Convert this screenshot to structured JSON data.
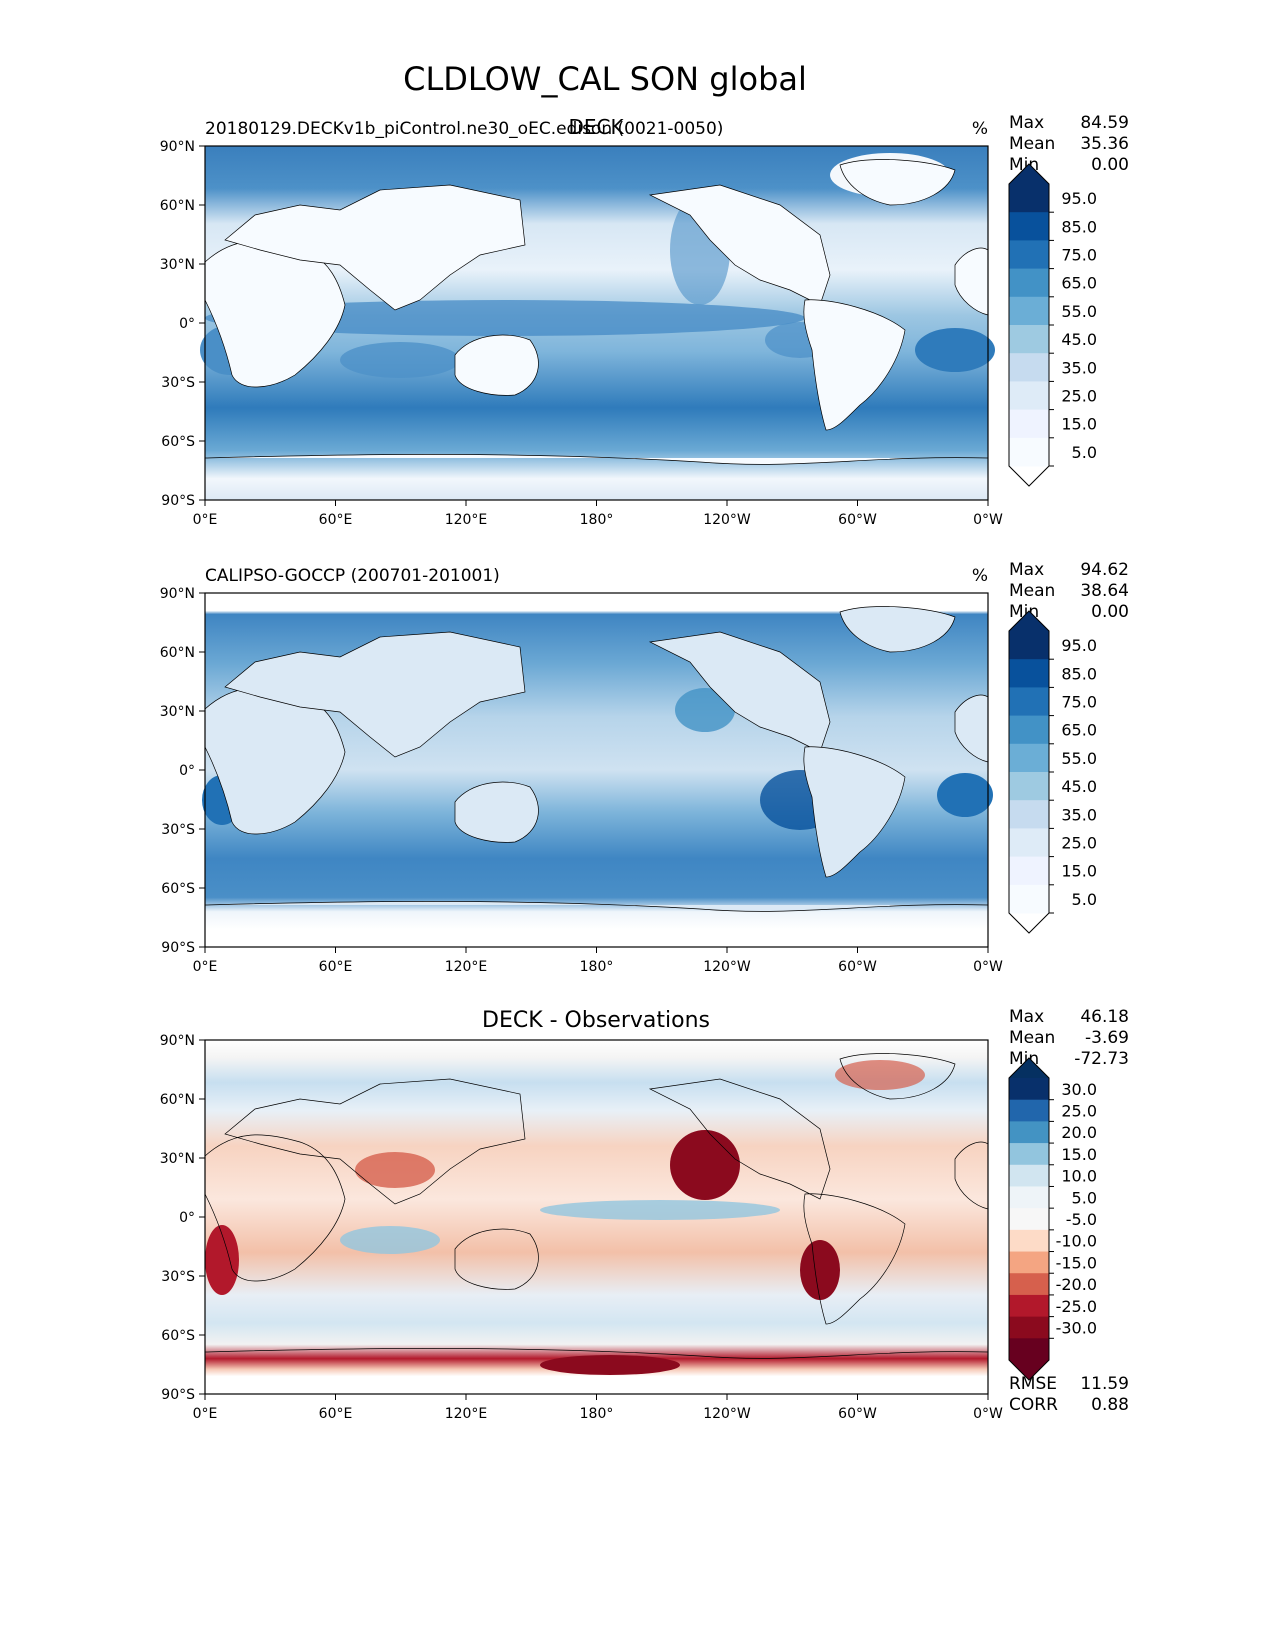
{
  "figure": {
    "title": "CLDLOW_CAL SON global",
    "stat_labels": [
      "Max",
      "Mean",
      "Min"
    ],
    "extra_stat_labels": [
      "RMSE",
      "CORR"
    ]
  },
  "chart_data": [
    {
      "type": "heatmap",
      "panel": "model",
      "left_title": "20180129.DECKv1b_piControl.ne30_oEC.edison (0021-0050)",
      "center_title": "DECK",
      "units": "%",
      "stats": {
        "Max": "84.59",
        "Mean": "35.36",
        "Min": "0.00"
      },
      "colorbar_labels": [
        "95.0",
        "85.0",
        "75.0",
        "65.0",
        "55.0",
        "45.0",
        "35.0",
        "25.0",
        "15.0",
        "5.0"
      ],
      "colorbar_colors": [
        "#08306b",
        "#08519c",
        "#2171b5",
        "#4292c6",
        "#6baed6",
        "#9ecae1",
        "#c6dbef",
        "#deebf7",
        "#eff3ff",
        "#f7fbff"
      ],
      "colorbar_extend_colors": {
        "high": "#08306b",
        "low": "#ffffff"
      },
      "x_ticks": [
        "0°E",
        "60°E",
        "120°E",
        "180°",
        "120°W",
        "60°W",
        "0°W"
      ],
      "y_ticks": [
        "90°N",
        "60°N",
        "30°N",
        "0°",
        "30°S",
        "60°S",
        "90°S"
      ],
      "xlim": [
        0,
        360
      ],
      "ylim": [
        -90,
        90
      ]
    },
    {
      "type": "heatmap",
      "panel": "obs",
      "left_title": "CALIPSO-GOCCP (200701-201001)",
      "center_title": "",
      "units": "%",
      "stats": {
        "Max": "94.62",
        "Mean": "38.64",
        "Min": "0.00"
      },
      "colorbar_labels": [
        "95.0",
        "85.0",
        "75.0",
        "65.0",
        "55.0",
        "45.0",
        "35.0",
        "25.0",
        "15.0",
        "5.0"
      ],
      "colorbar_colors": [
        "#08306b",
        "#08519c",
        "#2171b5",
        "#4292c6",
        "#6baed6",
        "#9ecae1",
        "#c6dbef",
        "#deebf7",
        "#eff3ff",
        "#f7fbff"
      ],
      "colorbar_extend_colors": {
        "high": "#08306b",
        "low": "#ffffff"
      },
      "x_ticks": [
        "0°E",
        "60°E",
        "120°E",
        "180°",
        "120°W",
        "60°W",
        "0°W"
      ],
      "y_ticks": [
        "90°N",
        "60°N",
        "30°N",
        "0°",
        "30°S",
        "60°S",
        "90°S"
      ],
      "xlim": [
        0,
        360
      ],
      "ylim": [
        -90,
        90
      ]
    },
    {
      "type": "heatmap",
      "panel": "diff",
      "left_title": "",
      "center_title": "DECK - Observations",
      "units": "",
      "stats": {
        "Max": "46.18",
        "Mean": "-3.69",
        "Min": "-72.73"
      },
      "extra_stats": {
        "RMSE": "11.59",
        "CORR": "0.88"
      },
      "colorbar_labels": [
        "30.0",
        "25.0",
        "20.0",
        "15.0",
        "10.0",
        "5.0",
        "-5.0",
        "-10.0",
        "-15.0",
        "-20.0",
        "-25.0",
        "-30.0"
      ],
      "colorbar_colors": [
        "#08306b",
        "#2166ac",
        "#4393c3",
        "#92c5de",
        "#d1e5f0",
        "#eef4f8",
        "#f7f7f7",
        "#fddbc7",
        "#f4a582",
        "#d6604d",
        "#b2182b",
        "#8b0a1e",
        "#67001f"
      ],
      "colorbar_extend_colors": {
        "high": "#053061",
        "low": "#67001f"
      },
      "x_ticks": [
        "0°E",
        "60°E",
        "120°E",
        "180°",
        "120°W",
        "60°W",
        "0°W"
      ],
      "y_ticks": [
        "90°N",
        "60°N",
        "30°N",
        "0°",
        "30°S",
        "60°S",
        "90°S"
      ],
      "xlim": [
        0,
        360
      ],
      "ylim": [
        -90,
        90
      ]
    }
  ]
}
